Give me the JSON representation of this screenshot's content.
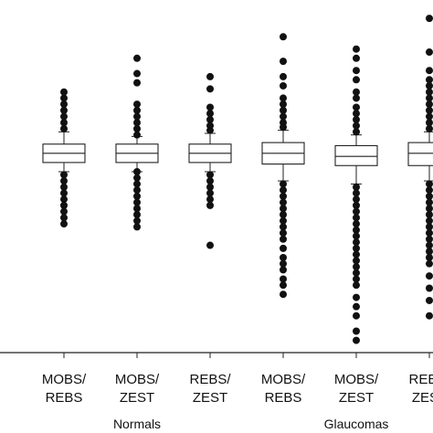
{
  "chart_data": {
    "type": "boxplot",
    "title": "",
    "xlabel": "",
    "ylabel": "",
    "ylim": [
      -0.65,
      0.5
    ],
    "grid": false,
    "legend": "none",
    "categories": [
      {
        "line1": "MOBS/",
        "line2": "REBS"
      },
      {
        "line1": "MOBS/",
        "line2": "ZEST"
      },
      {
        "line1": "REBS/",
        "line2": "ZEST"
      },
      {
        "line1": "MOBS/",
        "line2": "REBS"
      },
      {
        "line1": "MOBS/",
        "line2": "ZEST"
      },
      {
        "line1": "REBS/",
        "line2": "ZEST"
      }
    ],
    "groups": [
      {
        "label": "Normals",
        "categories": [
          0,
          1,
          2
        ]
      },
      {
        "label": "Glaucomas",
        "categories": [
          3,
          4,
          5
        ]
      }
    ],
    "boxes": [
      {
        "whisker_low": -0.06,
        "q1": -0.03,
        "median": 0.0,
        "q3": 0.03,
        "whisker_high": 0.07,
        "outliers": [
          -0.07,
          -0.09,
          -0.11,
          -0.13,
          -0.15,
          -0.17,
          -0.19,
          -0.21,
          -0.23,
          0.08,
          0.1,
          0.12,
          0.14,
          0.16,
          0.18,
          0.2
        ]
      },
      {
        "whisker_low": -0.06,
        "q1": -0.03,
        "median": 0.0,
        "q3": 0.03,
        "whisker_high": 0.055,
        "outliers": [
          -0.06,
          -0.08,
          -0.1,
          -0.12,
          -0.14,
          -0.16,
          -0.18,
          -0.2,
          -0.22,
          -0.24,
          0.06,
          0.08,
          0.1,
          0.12,
          0.14,
          0.16,
          0.23,
          0.26,
          0.31
        ]
      },
      {
        "whisker_low": -0.06,
        "q1": -0.03,
        "median": 0.0,
        "q3": 0.03,
        "whisker_high": 0.065,
        "outliers": [
          -0.07,
          -0.09,
          -0.11,
          -0.13,
          -0.15,
          -0.17,
          -0.3,
          0.075,
          0.09,
          0.11,
          0.13,
          0.15,
          0.21,
          0.25
        ]
      },
      {
        "whisker_low": -0.09,
        "q1": -0.035,
        "median": 0.0,
        "q3": 0.035,
        "whisker_high": 0.075,
        "outliers": [
          -0.1,
          -0.12,
          -0.14,
          -0.16,
          -0.18,
          -0.2,
          -0.22,
          -0.24,
          -0.26,
          -0.28,
          -0.31,
          -0.34,
          -0.36,
          -0.38,
          -0.41,
          -0.43,
          -0.46,
          0.085,
          0.1,
          0.12,
          0.14,
          0.16,
          0.18,
          0.22,
          0.25,
          0.3,
          0.38
        ]
      },
      {
        "whisker_low": -0.1,
        "q1": -0.04,
        "median": -0.01,
        "q3": 0.025,
        "whisker_high": 0.06,
        "outliers": [
          -0.11,
          -0.13,
          -0.15,
          -0.17,
          -0.19,
          -0.21,
          -0.23,
          -0.25,
          -0.27,
          -0.29,
          -0.31,
          -0.33,
          -0.35,
          -0.37,
          -0.39,
          -0.41,
          -0.43,
          -0.47,
          -0.5,
          -0.53,
          -0.58,
          -0.61,
          0.07,
          0.09,
          0.11,
          0.13,
          0.15,
          0.18,
          0.2,
          0.24,
          0.27,
          0.31,
          0.34
        ]
      },
      {
        "whisker_low": -0.09,
        "q1": -0.04,
        "median": 0.0,
        "q3": 0.035,
        "whisker_high": 0.07,
        "outliers": [
          -0.1,
          -0.12,
          -0.14,
          -0.16,
          -0.18,
          -0.2,
          -0.22,
          -0.24,
          -0.26,
          -0.28,
          -0.3,
          -0.32,
          -0.34,
          -0.36,
          -0.4,
          -0.44,
          -0.48,
          -0.53,
          0.08,
          0.1,
          0.12,
          0.14,
          0.16,
          0.18,
          0.2,
          0.22,
          0.24,
          0.27,
          0.33,
          0.44
        ]
      }
    ],
    "colors": {
      "stroke": "#222222",
      "box_fill": "#ffffff",
      "outlier": "#111111"
    }
  }
}
